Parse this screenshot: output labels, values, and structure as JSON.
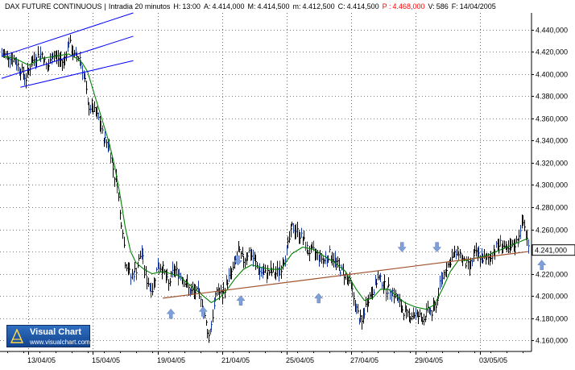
{
  "header": {
    "instrument": "DAX FUTURE CONTINUOUS",
    "timeframe": "Intradia 20 minutos",
    "H_label": "H:",
    "H_value": "13:00",
    "A_label": "A:",
    "A_value": "4.414,000",
    "M_label": "M:",
    "M_value": "4.414,500",
    "m_label": "m:",
    "m_value": "4.412,500",
    "C_label": "C:",
    "C_value": "4.414,500",
    "P_label": "P :",
    "P_value": "4.468,000",
    "V_label": "V:",
    "V_value": "586",
    "F_label": "F:",
    "F_value": "14/04/2005",
    "separator": "|"
  },
  "logo": {
    "title": "Visual Chart",
    "url": "www.visualchart.com"
  },
  "colors": {
    "price": "#000000",
    "price_highlight": "#1a3aa6",
    "moving_average": "#008000",
    "channel": "#0000ff",
    "trendline": "#a0522d",
    "arrow": "#7f9fd6",
    "grid": "#000000",
    "last_price_box": "#ffffff"
  },
  "chart_data": {
    "type": "line",
    "title": "DAX FUTURE CONTINUOUS",
    "xlabel": "",
    "ylabel": "",
    "grid": true,
    "ylim": [
      4150,
      4455
    ],
    "y_ticks": [
      "4.160,000",
      "4.180,000",
      "4.200,000",
      "4.220,000",
      "4.240,000",
      "4.260,000",
      "4.280,000",
      "4.300,000",
      "4.320,000",
      "4.340,000",
      "4.360,000",
      "4.380,000",
      "4.400,000",
      "4.420,000",
      "4.440,000"
    ],
    "y_tick_values": [
      4160,
      4180,
      4200,
      4220,
      4240,
      4260,
      4280,
      4300,
      4320,
      4340,
      4360,
      4380,
      4400,
      4420,
      4440
    ],
    "x_tick_labels": [
      "13/04/05",
      "15/04/05",
      "19/04/05",
      "21/04/05",
      "25/04/05",
      "27/04/05",
      "29/04/05",
      "03/05/05"
    ],
    "x_tick_bars": [
      20,
      68,
      116,
      164,
      212,
      260,
      308,
      356
    ],
    "bar_count": 392,
    "last_price_label": "4.241,000",
    "last_price_value": 4241,
    "price_keypoints": [
      [
        0,
        4418
      ],
      [
        6,
        4416
      ],
      [
        10,
        4412
      ],
      [
        14,
        4404
      ],
      [
        18,
        4396
      ],
      [
        22,
        4410
      ],
      [
        26,
        4416
      ],
      [
        30,
        4418
      ],
      [
        34,
        4404
      ],
      [
        38,
        4418
      ],
      [
        42,
        4414
      ],
      [
        46,
        4410
      ],
      [
        50,
        4430
      ],
      [
        54,
        4416
      ],
      [
        58,
        4415
      ],
      [
        62,
        4394
      ],
      [
        64,
        4372
      ],
      [
        68,
        4368
      ],
      [
        72,
        4360
      ],
      [
        76,
        4342
      ],
      [
        80,
        4335
      ],
      [
        84,
        4308
      ],
      [
        86,
        4302
      ],
      [
        88,
        4274
      ],
      [
        90,
        4260
      ],
      [
        92,
        4231
      ],
      [
        94,
        4225
      ],
      [
        96,
        4217
      ],
      [
        100,
        4224
      ],
      [
        104,
        4240
      ],
      [
        106,
        4225
      ],
      [
        108,
        4214
      ],
      [
        112,
        4206
      ],
      [
        116,
        4228
      ],
      [
        120,
        4224
      ],
      [
        124,
        4210
      ],
      [
        128,
        4224
      ],
      [
        132,
        4220
      ],
      [
        136,
        4214
      ],
      [
        140,
        4204
      ],
      [
        144,
        4204
      ],
      [
        148,
        4200
      ],
      [
        150,
        4186
      ],
      [
        152,
        4175
      ],
      [
        154,
        4164
      ],
      [
        156,
        4175
      ],
      [
        158,
        4190
      ],
      [
        160,
        4206
      ],
      [
        164,
        4200
      ],
      [
        168,
        4214
      ],
      [
        172,
        4224
      ],
      [
        176,
        4240
      ],
      [
        180,
        4232
      ],
      [
        184,
        4240
      ],
      [
        188,
        4232
      ],
      [
        192,
        4222
      ],
      [
        196,
        4220
      ],
      [
        200,
        4222
      ],
      [
        204,
        4220
      ],
      [
        208,
        4226
      ],
      [
        212,
        4240
      ],
      [
        216,
        4262
      ],
      [
        220,
        4258
      ],
      [
        224,
        4252
      ],
      [
        228,
        4240
      ],
      [
        232,
        4240
      ],
      [
        236,
        4236
      ],
      [
        240,
        4232
      ],
      [
        244,
        4238
      ],
      [
        248,
        4232
      ],
      [
        252,
        4224
      ],
      [
        256,
        4218
      ],
      [
        260,
        4210
      ],
      [
        262,
        4198
      ],
      [
        264,
        4188
      ],
      [
        266,
        4180
      ],
      [
        268,
        4176
      ],
      [
        270,
        4186
      ],
      [
        272,
        4196
      ],
      [
        276,
        4204
      ],
      [
        280,
        4216
      ],
      [
        284,
        4212
      ],
      [
        286,
        4206
      ],
      [
        290,
        4206
      ],
      [
        294,
        4198
      ],
      [
        298,
        4188
      ],
      [
        302,
        4182
      ],
      [
        306,
        4184
      ],
      [
        310,
        4182
      ],
      [
        314,
        4180
      ],
      [
        318,
        4188
      ],
      [
        320,
        4184
      ],
      [
        324,
        4196
      ],
      [
        326,
        4210
      ],
      [
        330,
        4224
      ],
      [
        336,
        4236
      ],
      [
        340,
        4240
      ],
      [
        344,
        4230
      ],
      [
        348,
        4226
      ],
      [
        352,
        4238
      ],
      [
        356,
        4236
      ],
      [
        360,
        4232
      ],
      [
        364,
        4236
      ],
      [
        368,
        4244
      ],
      [
        372,
        4248
      ],
      [
        376,
        4240
      ],
      [
        380,
        4244
      ],
      [
        384,
        4250
      ],
      [
        386,
        4262
      ],
      [
        388,
        4266
      ],
      [
        390,
        4258
      ],
      [
        392,
        4244
      ]
    ],
    "moving_average_keypoints": [
      [
        0,
        4416
      ],
      [
        10,
        4414
      ],
      [
        20,
        4408
      ],
      [
        30,
        4414
      ],
      [
        40,
        4416
      ],
      [
        50,
        4418
      ],
      [
        56,
        4414
      ],
      [
        60,
        4410
      ],
      [
        64,
        4402
      ],
      [
        68,
        4386
      ],
      [
        72,
        4370
      ],
      [
        76,
        4354
      ],
      [
        80,
        4338
      ],
      [
        84,
        4318
      ],
      [
        88,
        4292
      ],
      [
        92,
        4262
      ],
      [
        96,
        4240
      ],
      [
        100,
        4230
      ],
      [
        106,
        4224
      ],
      [
        112,
        4220
      ],
      [
        120,
        4222
      ],
      [
        126,
        4220
      ],
      [
        132,
        4218
      ],
      [
        138,
        4212
      ],
      [
        144,
        4206
      ],
      [
        150,
        4200
      ],
      [
        156,
        4194
      ],
      [
        162,
        4198
      ],
      [
        168,
        4206
      ],
      [
        174,
        4216
      ],
      [
        180,
        4224
      ],
      [
        186,
        4228
      ],
      [
        192,
        4226
      ],
      [
        200,
        4224
      ],
      [
        208,
        4224
      ],
      [
        216,
        4238
      ],
      [
        224,
        4244
      ],
      [
        232,
        4242
      ],
      [
        240,
        4236
      ],
      [
        248,
        4230
      ],
      [
        256,
        4222
      ],
      [
        264,
        4206
      ],
      [
        270,
        4196
      ],
      [
        276,
        4198
      ],
      [
        282,
        4206
      ],
      [
        288,
        4206
      ],
      [
        294,
        4200
      ],
      [
        300,
        4194
      ],
      [
        308,
        4190
      ],
      [
        316,
        4188
      ],
      [
        322,
        4192
      ],
      [
        328,
        4206
      ],
      [
        334,
        4222
      ],
      [
        340,
        4232
      ],
      [
        346,
        4232
      ],
      [
        352,
        4234
      ],
      [
        360,
        4236
      ],
      [
        368,
        4240
      ],
      [
        376,
        4244
      ],
      [
        384,
        4248
      ],
      [
        392,
        4252
      ]
    ],
    "channel_lines": [
      [
        [
          0,
          4396
        ],
        [
          98,
          4434
        ]
      ],
      [
        [
          0,
          4416
        ],
        [
          98,
          4455
        ]
      ],
      [
        [
          14,
          4388
        ],
        [
          98,
          4412
        ]
      ]
    ],
    "support_line": [
      [
        120,
        4198
      ],
      [
        392,
        4240
      ]
    ],
    "up_arrows": [
      [
        126,
        4184
      ],
      [
        150,
        4186
      ],
      [
        178,
        4196
      ],
      [
        236,
        4198
      ],
      [
        402,
        4228
      ]
    ],
    "down_arrows": [
      [
        298,
        4244
      ],
      [
        324,
        4244
      ],
      [
        176,
        4232
      ]
    ]
  }
}
